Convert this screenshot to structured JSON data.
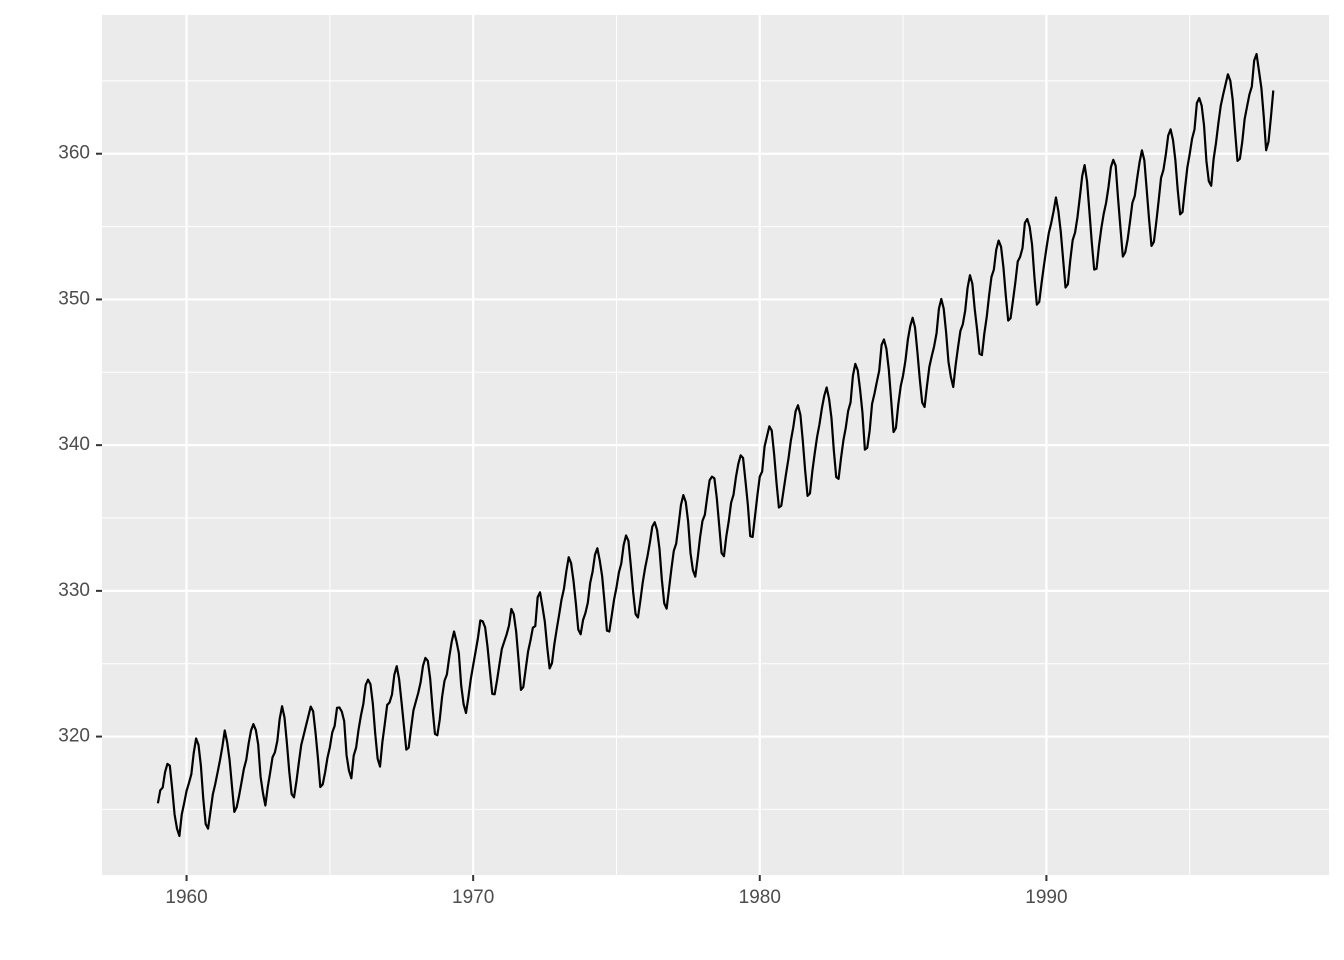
{
  "chart_data": {
    "type": "line",
    "color": "#000000",
    "grid": true,
    "xlim": [
      1957.05,
      1999.86
    ],
    "xticks": [
      1960,
      1970,
      1980,
      1990
    ],
    "x_minor_ticks": [
      1965,
      1975,
      1985,
      1995
    ],
    "ylim": [
      310.5,
      369.52
    ],
    "yticks": [
      320,
      330,
      340,
      350,
      360
    ],
    "y_minor_ticks": [
      315,
      325,
      335,
      345,
      355,
      365
    ],
    "x": [
      1959,
      1959.083,
      1959.167,
      1959.25,
      1959.333,
      1959.417,
      1959.5,
      1959.583,
      1959.667,
      1959.75,
      1959.833,
      1959.917,
      1960,
      1960.083,
      1960.167,
      1960.25,
      1960.333,
      1960.417,
      1960.5,
      1960.583,
      1960.667,
      1960.75,
      1960.833,
      1960.917,
      1961,
      1961.083,
      1961.167,
      1961.25,
      1961.333,
      1961.417,
      1961.5,
      1961.583,
      1961.667,
      1961.75,
      1961.833,
      1961.917,
      1962,
      1962.083,
      1962.167,
      1962.25,
      1962.333,
      1962.417,
      1962.5,
      1962.583,
      1962.667,
      1962.75,
      1962.833,
      1962.917,
      1963,
      1963.083,
      1963.167,
      1963.25,
      1963.333,
      1963.417,
      1963.5,
      1963.583,
      1963.667,
      1963.75,
      1963.833,
      1963.917,
      1964,
      1964.083,
      1964.167,
      1964.25,
      1964.333,
      1964.417,
      1964.5,
      1964.583,
      1964.667,
      1964.75,
      1964.833,
      1964.917,
      1965,
      1965.083,
      1965.167,
      1965.25,
      1965.333,
      1965.417,
      1965.5,
      1965.583,
      1965.667,
      1965.75,
      1965.833,
      1965.917,
      1966,
      1966.083,
      1966.167,
      1966.25,
      1966.333,
      1966.417,
      1966.5,
      1966.583,
      1966.667,
      1966.75,
      1966.833,
      1966.917,
      1967,
      1967.083,
      1967.167,
      1967.25,
      1967.333,
      1967.417,
      1967.5,
      1967.583,
      1967.667,
      1967.75,
      1967.833,
      1967.917,
      1968,
      1968.083,
      1968.167,
      1968.25,
      1968.333,
      1968.417,
      1968.5,
      1968.583,
      1968.667,
      1968.75,
      1968.833,
      1968.917,
      1969,
      1969.083,
      1969.167,
      1969.25,
      1969.333,
      1969.417,
      1969.5,
      1969.583,
      1969.667,
      1969.75,
      1969.833,
      1969.917,
      1970,
      1970.083,
      1970.167,
      1970.25,
      1970.333,
      1970.417,
      1970.5,
      1970.583,
      1970.667,
      1970.75,
      1970.833,
      1970.917,
      1971,
      1971.083,
      1971.167,
      1971.25,
      1971.333,
      1971.417,
      1971.5,
      1971.583,
      1971.667,
      1971.75,
      1971.833,
      1971.917,
      1972,
      1972.083,
      1972.167,
      1972.25,
      1972.333,
      1972.417,
      1972.5,
      1972.583,
      1972.667,
      1972.75,
      1972.833,
      1972.917,
      1973,
      1973.083,
      1973.167,
      1973.25,
      1973.333,
      1973.417,
      1973.5,
      1973.583,
      1973.667,
      1973.75,
      1973.833,
      1973.917,
      1974,
      1974.083,
      1974.167,
      1974.25,
      1974.333,
      1974.417,
      1974.5,
      1974.583,
      1974.667,
      1974.75,
      1974.833,
      1974.917,
      1975,
      1975.083,
      1975.167,
      1975.25,
      1975.333,
      1975.417,
      1975.5,
      1975.583,
      1975.667,
      1975.75,
      1975.833,
      1975.917,
      1976,
      1976.083,
      1976.167,
      1976.25,
      1976.333,
      1976.417,
      1976.5,
      1976.583,
      1976.667,
      1976.75,
      1976.833,
      1976.917,
      1977,
      1977.083,
      1977.167,
      1977.25,
      1977.333,
      1977.417,
      1977.5,
      1977.583,
      1977.667,
      1977.75,
      1977.833,
      1977.917,
      1978,
      1978.083,
      1978.167,
      1978.25,
      1978.333,
      1978.417,
      1978.5,
      1978.583,
      1978.667,
      1978.75,
      1978.833,
      1978.917,
      1979,
      1979.083,
      1979.167,
      1979.25,
      1979.333,
      1979.417,
      1979.5,
      1979.583,
      1979.667,
      1979.75,
      1979.833,
      1979.917,
      1980,
      1980.083,
      1980.167,
      1980.25,
      1980.333,
      1980.417,
      1980.5,
      1980.583,
      1980.667,
      1980.75,
      1980.833,
      1980.917,
      1981,
      1981.083,
      1981.167,
      1981.25,
      1981.333,
      1981.417,
      1981.5,
      1981.583,
      1981.667,
      1981.75,
      1981.833,
      1981.917,
      1982,
      1982.083,
      1982.167,
      1982.25,
      1982.333,
      1982.417,
      1982.5,
      1982.583,
      1982.667,
      1982.75,
      1982.833,
      1982.917,
      1983,
      1983.083,
      1983.167,
      1983.25,
      1983.333,
      1983.417,
      1983.5,
      1983.583,
      1983.667,
      1983.75,
      1983.833,
      1983.917,
      1984,
      1984.083,
      1984.167,
      1984.25,
      1984.333,
      1984.417,
      1984.5,
      1984.583,
      1984.667,
      1984.75,
      1984.833,
      1984.917,
      1985,
      1985.083,
      1985.167,
      1985.25,
      1985.333,
      1985.417,
      1985.5,
      1985.583,
      1985.667,
      1985.75,
      1985.833,
      1985.917,
      1986,
      1986.083,
      1986.167,
      1986.25,
      1986.333,
      1986.417,
      1986.5,
      1986.583,
      1986.667,
      1986.75,
      1986.833,
      1986.917,
      1987,
      1987.083,
      1987.167,
      1987.25,
      1987.333,
      1987.417,
      1987.5,
      1987.583,
      1987.667,
      1987.75,
      1987.833,
      1987.917,
      1988,
      1988.083,
      1988.167,
      1988.25,
      1988.333,
      1988.417,
      1988.5,
      1988.583,
      1988.667,
      1988.75,
      1988.833,
      1988.917,
      1989,
      1989.083,
      1989.167,
      1989.25,
      1989.333,
      1989.417,
      1989.5,
      1989.583,
      1989.667,
      1989.75,
      1989.833,
      1989.917,
      1990,
      1990.083,
      1990.167,
      1990.25,
      1990.333,
      1990.417,
      1990.5,
      1990.583,
      1990.667,
      1990.75,
      1990.833,
      1990.917,
      1991,
      1991.083,
      1991.167,
      1991.25,
      1991.333,
      1991.417,
      1991.5,
      1991.583,
      1991.667,
      1991.75,
      1991.833,
      1991.917,
      1992,
      1992.083,
      1992.167,
      1992.25,
      1992.333,
      1992.417,
      1992.5,
      1992.583,
      1992.667,
      1992.75,
      1992.833,
      1992.917,
      1993,
      1993.083,
      1993.167,
      1993.25,
      1993.333,
      1993.417,
      1993.5,
      1993.583,
      1993.667,
      1993.75,
      1993.833,
      1993.917,
      1994,
      1994.083,
      1994.167,
      1994.25,
      1994.333,
      1994.417,
      1994.5,
      1994.583,
      1994.667,
      1994.75,
      1994.833,
      1994.917,
      1995,
      1995.083,
      1995.167,
      1995.25,
      1995.333,
      1995.417,
      1995.5,
      1995.583,
      1995.667,
      1995.75,
      1995.833,
      1995.917,
      1996,
      1996.083,
      1996.167,
      1996.25,
      1996.333,
      1996.417,
      1996.5,
      1996.583,
      1996.667,
      1996.75,
      1996.833,
      1996.917,
      1997,
      1997.083,
      1997.167,
      1997.25,
      1997.333,
      1997.417,
      1997.5,
      1997.583,
      1997.667,
      1997.75,
      1997.833,
      1997.917
    ],
    "values": [
      315.42,
      316.31,
      316.5,
      317.56,
      318.13,
      318,
      316.39,
      314.65,
      313.68,
      313.18,
      314.66,
      315.43,
      316.27,
      316.81,
      317.42,
      318.87,
      319.87,
      319.43,
      318.01,
      315.74,
      314,
      313.68,
      314.84,
      316.03,
      316.73,
      317.54,
      318.38,
      319.31,
      320.42,
      319.61,
      318.42,
      316.63,
      314.83,
      315.16,
      315.94,
      316.85,
      317.78,
      318.4,
      319.53,
      320.42,
      320.85,
      320.45,
      319.45,
      317.25,
      316.11,
      315.27,
      316.53,
      317.53,
      318.58,
      318.92,
      319.7,
      321.22,
      322.08,
      321.31,
      319.58,
      317.61,
      316.05,
      315.83,
      316.91,
      318.2,
      319.41,
      320.07,
      320.74,
      321.4,
      322.06,
      321.73,
      320.27,
      318.54,
      316.54,
      316.71,
      317.53,
      318.55,
      319.27,
      320.28,
      320.73,
      321.97,
      322,
      321.71,
      321.05,
      318.71,
      317.66,
      317.14,
      318.7,
      319.25,
      320.46,
      321.43,
      322.23,
      323.54,
      323.91,
      323.59,
      322.24,
      320.2,
      318.48,
      317.94,
      319.63,
      320.87,
      322.17,
      322.34,
      322.88,
      324.25,
      324.83,
      323.93,
      322.38,
      320.76,
      319.1,
      319.24,
      320.56,
      321.8,
      322.4,
      322.99,
      323.73,
      324.86,
      325.4,
      325.2,
      323.98,
      321.95,
      320.18,
      320.09,
      321.16,
      322.74,
      323.83,
      324.26,
      325.47,
      326.5,
      327.21,
      326.54,
      325.72,
      323.5,
      322.22,
      321.62,
      322.69,
      323.95,
      324.89,
      325.82,
      326.77,
      327.97,
      327.91,
      327.5,
      326.18,
      324.53,
      322.93,
      322.9,
      323.85,
      324.96,
      326.01,
      326.51,
      327.01,
      327.62,
      328.76,
      328.4,
      327.2,
      325.27,
      323.2,
      323.4,
      324.63,
      325.85,
      326.6,
      327.47,
      327.58,
      329.56,
      329.9,
      328.92,
      327.88,
      326.16,
      324.68,
      325.04,
      326.34,
      327.39,
      328.37,
      329.4,
      330.14,
      331.33,
      332.31,
      331.9,
      330.7,
      329.15,
      327.35,
      327.02,
      327.99,
      328.48,
      329.18,
      330.55,
      331.32,
      332.48,
      332.92,
      332.08,
      331.01,
      329.23,
      327.27,
      327.21,
      328.29,
      329.41,
      330.23,
      331.25,
      331.87,
      333.14,
      333.8,
      333.43,
      331.73,
      329.9,
      328.4,
      328.17,
      329.32,
      330.59,
      331.58,
      332.39,
      333.33,
      334.41,
      334.71,
      334.17,
      332.89,
      330.77,
      329.14,
      328.78,
      330.14,
      331.52,
      332.75,
      333.24,
      334.53,
      335.9,
      336.57,
      336.1,
      334.76,
      332.59,
      331.42,
      330.98,
      332.24,
      333.68,
      334.8,
      335.22,
      336.47,
      337.59,
      337.84,
      337.72,
      336.37,
      334.51,
      332.6,
      332.38,
      333.75,
      334.78,
      336.05,
      336.59,
      337.79,
      338.71,
      339.3,
      339.12,
      337.56,
      335.92,
      333.75,
      333.7,
      335.12,
      336.56,
      337.84,
      338.19,
      339.91,
      340.6,
      341.29,
      341,
      339.39,
      337.43,
      335.72,
      335.84,
      336.93,
      338.04,
      339.06,
      340.3,
      341.21,
      342.33,
      342.74,
      342.08,
      340.32,
      338.26,
      336.52,
      336.68,
      338.19,
      339.44,
      340.57,
      341.44,
      342.53,
      343.39,
      343.96,
      343.18,
      341.88,
      339.65,
      337.81,
      337.69,
      339.09,
      340.32,
      341.2,
      342.35,
      342.93,
      344.77,
      345.58,
      345.14,
      343.81,
      342.21,
      339.69,
      339.82,
      340.98,
      342.82,
      343.52,
      344.33,
      345.11,
      346.88,
      347.25,
      346.62,
      345.22,
      343.11,
      340.9,
      341.18,
      342.8,
      344.04,
      344.79,
      345.82,
      347.25,
      348.17,
      348.74,
      348.07,
      346.38,
      344.51,
      342.92,
      342.62,
      344.06,
      345.38,
      346.11,
      346.78,
      347.68,
      349.37,
      350.03,
      349.37,
      347.76,
      345.73,
      344.68,
      343.99,
      345.48,
      346.72,
      347.84,
      348.29,
      349.23,
      350.8,
      351.66,
      351.07,
      349.33,
      347.92,
      346.27,
      346.18,
      347.64,
      348.78,
      350.25,
      351.54,
      352.05,
      353.41,
      354.04,
      353.62,
      352.22,
      350.27,
      348.55,
      348.72,
      349.91,
      351.18,
      352.6,
      352.92,
      353.53,
      355.26,
      355.52,
      354.97,
      353.75,
      351.52,
      349.64,
      349.83,
      351.14,
      352.37,
      353.5,
      354.55,
      355.23,
      356.04,
      357,
      356.07,
      354.67,
      352.76,
      350.82,
      351.04,
      352.69,
      354.07,
      354.59,
      355.63,
      357.03,
      358.48,
      359.22,
      358.12,
      356.06,
      353.92,
      352.05,
      352.11,
      353.64,
      354.89,
      355.88,
      356.63,
      357.72,
      359.07,
      359.58,
      359.17,
      356.94,
      354.92,
      352.94,
      353.23,
      354.09,
      355.33,
      356.63,
      357.1,
      358.32,
      359.41,
      360.23,
      359.55,
      357.53,
      355.48,
      353.67,
      353.95,
      355.3,
      356.78,
      358.34,
      358.89,
      359.95,
      361.25,
      361.67,
      360.94,
      359.55,
      357.49,
      355.84,
      356,
      357.59,
      359.05,
      359.98,
      361.03,
      361.66,
      363.48,
      363.82,
      363.3,
      361.94,
      359.5,
      358.11,
      357.8,
      359.61,
      360.74,
      362.09,
      363.29,
      364.06,
      364.76,
      365.45,
      365.01,
      363.7,
      361.54,
      359.51,
      359.65,
      360.8,
      362.38,
      363.23,
      364.06,
      364.61,
      366.4,
      366.84,
      365.68,
      364.52,
      362.57,
      360.24,
      360.83,
      362.49,
      364.34
    ]
  }
}
